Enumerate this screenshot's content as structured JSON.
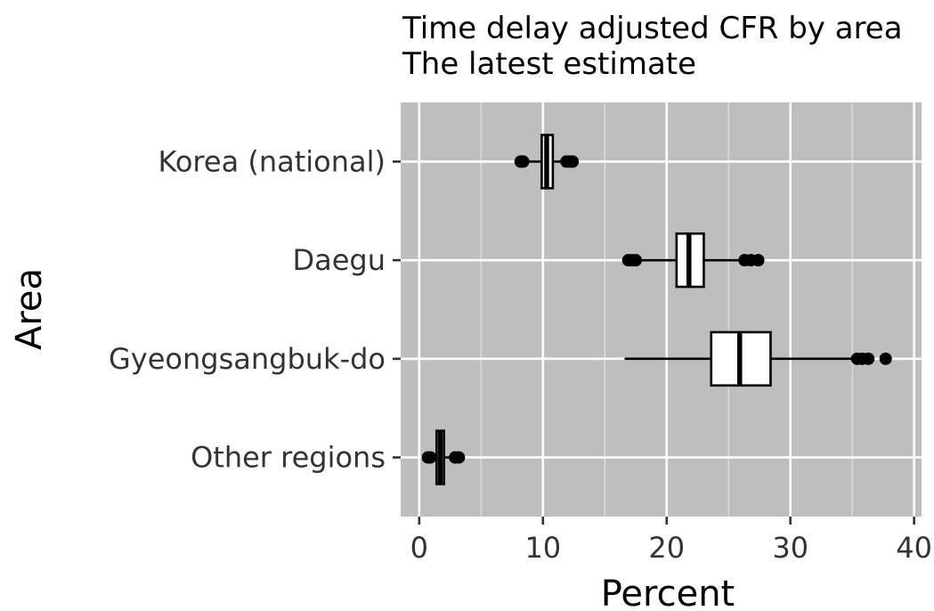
{
  "chart_data": {
    "type": "boxplot",
    "orientation": "horizontal",
    "title": "Time delay adjusted CFR by area",
    "subtitle": "The latest estimate",
    "xlabel": "Percent",
    "ylabel": "Area",
    "xlim": [
      -1.5,
      40.6
    ],
    "x_ticks": [
      0,
      10,
      20,
      30,
      40
    ],
    "x_tick_labels": [
      "0",
      "10",
      "20",
      "30",
      "40"
    ],
    "grid": true,
    "panel_color": "#bebebe",
    "grid_color": "#ffffff",
    "box_fill": "#ffffff",
    "box_stroke": "#000000",
    "categories": [
      "Korea (national)",
      "Daegu",
      "Gyeongsangbuk-do",
      "Other regions"
    ],
    "boxes": [
      {
        "name": "Korea (national)",
        "whisker_low": 8.8,
        "q1": 9.9,
        "median": 10.3,
        "q3": 10.8,
        "whisker_high": 11.6,
        "outliers": [
          8.2,
          8.4,
          11.9,
          12.2,
          12.4
        ]
      },
      {
        "name": "Daegu",
        "whisker_low": 17.8,
        "q1": 20.8,
        "median": 21.8,
        "q3": 23.0,
        "whisker_high": 26.0,
        "outliers": [
          16.9,
          17.2,
          17.5,
          26.3,
          26.8,
          27.4
        ]
      },
      {
        "name": "Gyeongsangbuk-do",
        "whisker_low": 16.6,
        "q1": 23.6,
        "median": 25.9,
        "q3": 28.4,
        "whisker_high": 35.0,
        "outliers": [
          35.4,
          35.8,
          36.3,
          37.7
        ]
      },
      {
        "name": "Other regions",
        "whisker_low": 1.0,
        "q1": 1.4,
        "median": 1.7,
        "q3": 2.0,
        "whisker_high": 2.6,
        "outliers": [
          0.7,
          0.9,
          2.9,
          3.2
        ]
      }
    ]
  }
}
